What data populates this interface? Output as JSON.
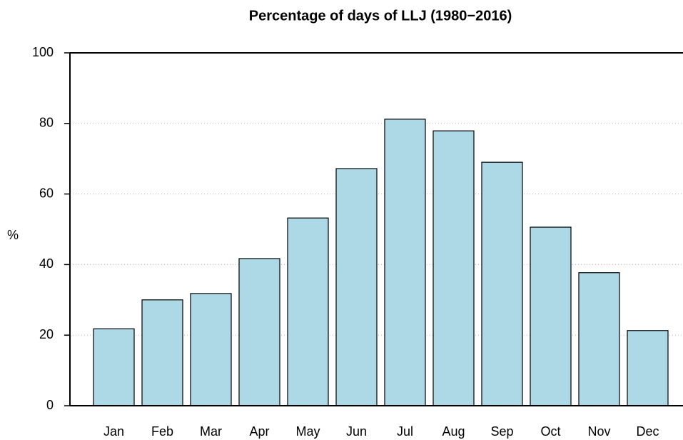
{
  "chart_data": {
    "type": "bar",
    "title": "Percentage of days of LLJ (1980−2016)",
    "y_label": "%",
    "categories": [
      "Jan",
      "Feb",
      "Mar",
      "Apr",
      "May",
      "Jun",
      "Jul",
      "Aug",
      "Sep",
      "Oct",
      "Nov",
      "Dec"
    ],
    "values": [
      21.8,
      30,
      31.8,
      41.7,
      53.2,
      67.2,
      81.2,
      77.9,
      69.0,
      50.6,
      37.7,
      21.3
    ],
    "color": "#add8e6",
    "ylim": [
      0,
      100
    ],
    "yticks": [
      0,
      20,
      40,
      60,
      80,
      100
    ],
    "grid": true
  }
}
